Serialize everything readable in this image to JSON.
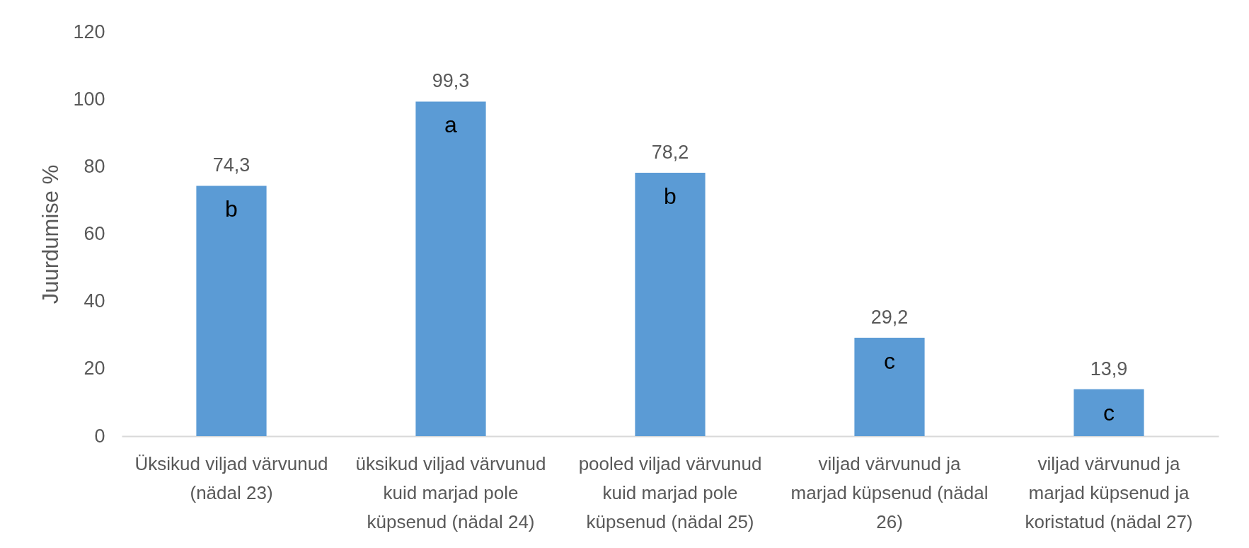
{
  "chart_data": {
    "type": "bar",
    "ylabel": "Juurdumise %",
    "categories": [
      "Üksikud viljad värvunud (nädal 23)",
      "üksikud viljad värvunud kuid marjad pole küpsenud (nädal 24)",
      "pooled viljad värvunud kuid marjad pole küpsenud (nädal 25)",
      "viljad värvunud ja marjad küpsenud (nädal 26)",
      "viljad värvunud ja marjad küpsenud ja koristatud (nädal 27)"
    ],
    "values": [
      74.3,
      99.3,
      78.2,
      29.2,
      13.9
    ],
    "value_labels": [
      "74,3",
      "99,3",
      "78,2",
      "29,2",
      "13,9"
    ],
    "color": "#5b9bd5",
    "ylim": [
      0,
      120
    ],
    "yticks": [
      0,
      20,
      40,
      60,
      80,
      100,
      120
    ],
    "grid": false,
    "annotations": [
      {
        "text": "b",
        "x": "Üksikud viljad värvunud (nädal 23)",
        "y": 74.3
      },
      {
        "text": "a",
        "x": "üksikud viljad värvunud kuid marjad pole küpsenud (nädal 24)",
        "y": 99.3
      },
      {
        "text": "b",
        "x": "pooled viljad värvunud kuid marjad pole küpsenud (nädal 25)",
        "y": 78.2
      },
      {
        "text": "c",
        "x": "viljad värvunud ja marjad küpsenud (nädal 26)",
        "y": 29.2
      },
      {
        "text": "c",
        "x": "viljad värvunud ja marjad küpsenud ja koristatud (nädal 27)",
        "y": 13.9
      }
    ]
  }
}
